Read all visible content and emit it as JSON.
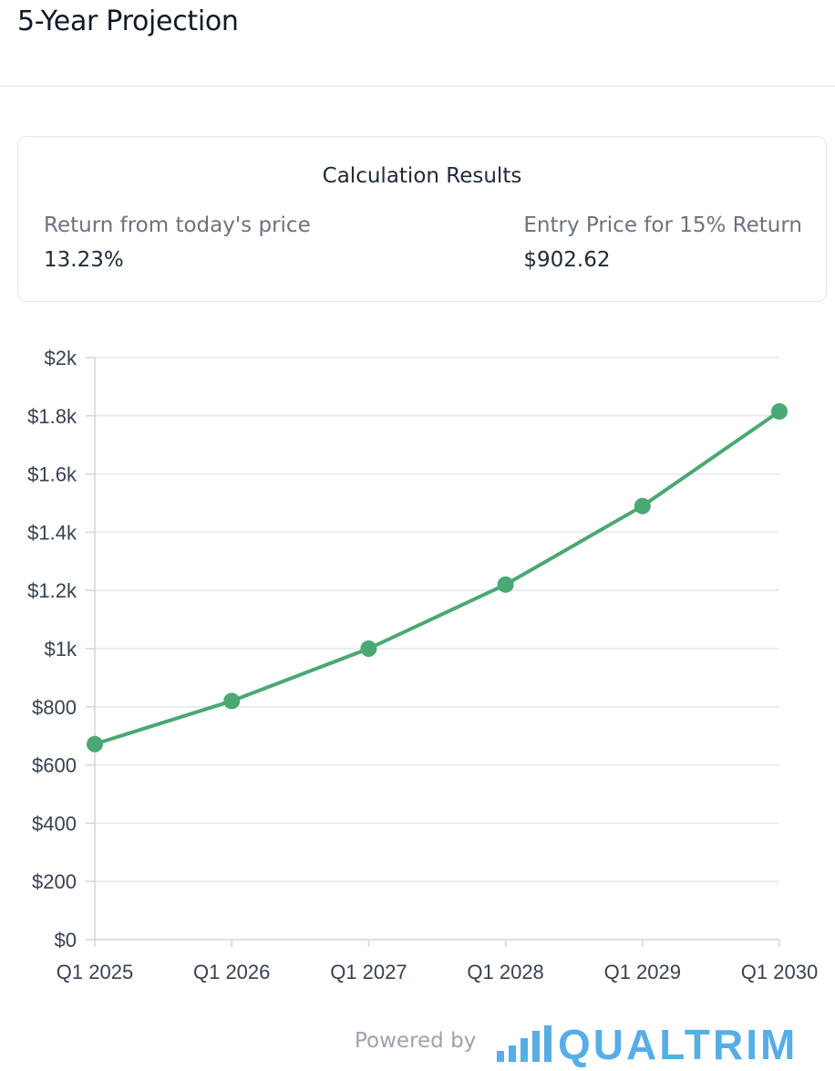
{
  "page": {
    "title": "5-Year Projection"
  },
  "results": {
    "title": "Calculation Results",
    "return_label": "Return from today's price",
    "return_value": "13.23%",
    "entry_label": "Entry Price for 15% Return",
    "entry_value": "$902.62"
  },
  "chart_data": {
    "type": "line",
    "categories": [
      "Q1 2025",
      "Q1 2026",
      "Q1 2027",
      "Q1 2028",
      "Q1 2029",
      "Q1 2030"
    ],
    "values": [
      672,
      820,
      1000,
      1220,
      1490,
      1815
    ],
    "ylim": [
      0,
      2000
    ],
    "yticks": [
      0,
      200,
      400,
      600,
      800,
      1000,
      1200,
      1400,
      1600,
      1800,
      2000
    ],
    "ytick_labels": [
      "$0",
      "$200",
      "$400",
      "$600",
      "$800",
      "$1k",
      "$1.2k",
      "$1.4k",
      "$1.6k",
      "$1.8k",
      "$2k"
    ],
    "grid": true,
    "line_color": "#4aa873"
  },
  "footer": {
    "powered_by": "Powered by",
    "brand": "QUALTRIM",
    "brand_color": "#55aee6"
  }
}
